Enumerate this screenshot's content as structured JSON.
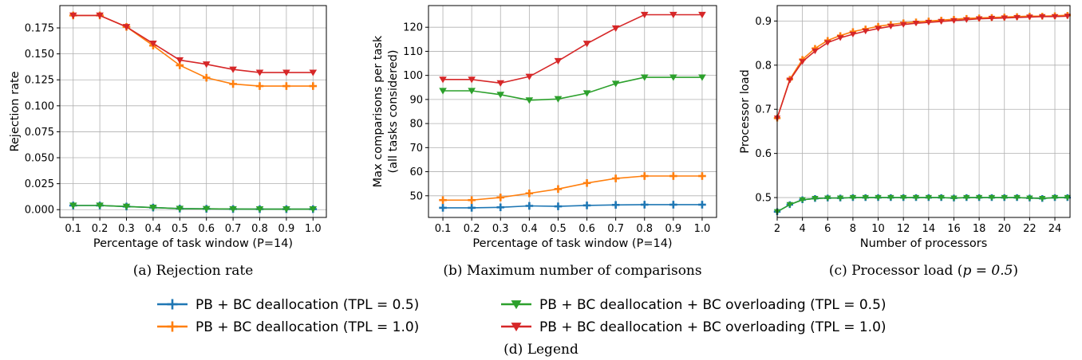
{
  "colors": {
    "pb_tpl05": "#1f77b4",
    "pb_tpl10": "#ff7f0e",
    "ovl_tpl05": "#2ca02c",
    "ovl_tpl10": "#d62728",
    "grid": "#b0b0b0"
  },
  "legend": {
    "caption": "(d) Legend",
    "entries": [
      {
        "key": "pb_tpl05",
        "label": "PB + BC deallocation (TPL = 0.5)",
        "marker": "plus"
      },
      {
        "key": "pb_tpl10",
        "label": "PB + BC deallocation (TPL = 1.0)",
        "marker": "plus"
      },
      {
        "key": "ovl_tpl05",
        "label": "PB + BC deallocation + BC overloading (TPL = 0.5)",
        "marker": "triangle-down"
      },
      {
        "key": "ovl_tpl10",
        "label": "PB + BC deallocation + BC overloading (TPL = 1.0)",
        "marker": "triangle-down"
      }
    ]
  },
  "chart_data": [
    {
      "type": "line",
      "caption": "(a) Rejection rate",
      "xlabel": "Percentage of task window (P=14)",
      "ylabel": "Rejection rate",
      "grid": true,
      "x": [
        0.1,
        0.2,
        0.3,
        0.4,
        0.5,
        0.6,
        0.7,
        0.8,
        0.9,
        1.0
      ],
      "xticks": [
        "0.1",
        "0.2",
        "0.3",
        "0.4",
        "0.5",
        "0.6",
        "0.7",
        "0.8",
        "0.9",
        "1.0"
      ],
      "xlim": [
        0.05,
        1.05
      ],
      "ylim": [
        -0.0075,
        0.1965
      ],
      "yticks": [
        "0.000",
        "0.025",
        "0.050",
        "0.075",
        "0.100",
        "0.125",
        "0.150",
        "0.175"
      ],
      "series": [
        {
          "key": "pb_tpl05",
          "values": [
            0.004,
            0.004,
            0.003,
            0.002,
            0.001,
            0.0008,
            0.0006,
            0.0005,
            0.0005,
            0.0005
          ]
        },
        {
          "key": "pb_tpl10",
          "values": [
            0.187,
            0.187,
            0.176,
            0.158,
            0.139,
            0.127,
            0.121,
            0.119,
            0.119,
            0.119
          ]
        },
        {
          "key": "ovl_tpl05",
          "values": [
            0.004,
            0.004,
            0.003,
            0.002,
            0.001,
            0.0008,
            0.0006,
            0.0005,
            0.0005,
            0.0005
          ]
        },
        {
          "key": "ovl_tpl10",
          "values": [
            0.187,
            0.187,
            0.176,
            0.16,
            0.144,
            0.14,
            0.135,
            0.132,
            0.132,
            0.132
          ]
        }
      ]
    },
    {
      "type": "line",
      "caption": "(b) Maximum number of comparisons",
      "xlabel": "Percentage of task window (P=14)",
      "ylabel": [
        "Max comparisons per task",
        "(all tasks considered)"
      ],
      "grid": true,
      "x": [
        0.1,
        0.2,
        0.3,
        0.4,
        0.5,
        0.6,
        0.7,
        0.8,
        0.9,
        1.0
      ],
      "xticks": [
        "0.1",
        "0.2",
        "0.3",
        "0.4",
        "0.5",
        "0.6",
        "0.7",
        "0.8",
        "0.9",
        "1.0"
      ],
      "xlim": [
        0.05,
        1.05
      ],
      "ylim": [
        41.0,
        129.0
      ],
      "yticks": [
        "50",
        "60",
        "70",
        "80",
        "90",
        "100",
        "110",
        "120"
      ],
      "series": [
        {
          "key": "pb_tpl05",
          "values": [
            45.0,
            45.0,
            45.2,
            45.8,
            45.6,
            46.0,
            46.2,
            46.3,
            46.3,
            46.3
          ]
        },
        {
          "key": "pb_tpl10",
          "values": [
            48.2,
            48.2,
            49.3,
            51.0,
            52.8,
            55.3,
            57.2,
            58.2,
            58.2,
            58.2
          ]
        },
        {
          "key": "ovl_tpl05",
          "values": [
            93.6,
            93.6,
            92.0,
            89.7,
            90.2,
            92.6,
            96.6,
            99.2,
            99.2,
            99.2
          ]
        },
        {
          "key": "ovl_tpl10",
          "values": [
            98.3,
            98.3,
            96.8,
            99.5,
            106.0,
            113.2,
            119.6,
            125.2,
            125.2,
            125.2
          ]
        }
      ]
    },
    {
      "type": "line",
      "caption": "(c) Processor load (",
      "caption_math": "p = 0.5",
      "caption_tail": ")",
      "xlabel": "Number of processors",
      "ylabel": "Processor load",
      "grid": true,
      "x": [
        2,
        3,
        4,
        5,
        6,
        7,
        8,
        9,
        10,
        11,
        12,
        13,
        14,
        15,
        16,
        17,
        18,
        19,
        20,
        21,
        22,
        23,
        24,
        25
      ],
      "xticks": [
        "2",
        "4",
        "6",
        "8",
        "10",
        "12",
        "14",
        "16",
        "18",
        "20",
        "22",
        "24"
      ],
      "xlim": [
        2,
        25.2
      ],
      "ylim": [
        0.455,
        0.935
      ],
      "yticks": [
        "0.5",
        "0.6",
        "0.7",
        "0.8",
        "0.9"
      ],
      "series": [
        {
          "key": "pb_tpl05",
          "values": [
            0.468,
            0.484,
            0.495,
            0.498,
            0.499,
            0.499,
            0.5,
            0.5,
            0.5,
            0.5,
            0.5,
            0.5,
            0.5,
            0.5,
            0.499,
            0.5,
            0.5,
            0.5,
            0.5,
            0.5,
            0.499,
            0.498,
            0.5,
            0.5
          ]
        },
        {
          "key": "pb_tpl10",
          "values": [
            0.68,
            0.768,
            0.813,
            0.838,
            0.856,
            0.867,
            0.876,
            0.882,
            0.888,
            0.892,
            0.896,
            0.898,
            0.9,
            0.902,
            0.904,
            0.906,
            0.907,
            0.908,
            0.909,
            0.91,
            0.911,
            0.911,
            0.912,
            0.913
          ]
        },
        {
          "key": "ovl_tpl05",
          "values": [
            0.468,
            0.484,
            0.495,
            0.498,
            0.499,
            0.499,
            0.5,
            0.5,
            0.5,
            0.5,
            0.5,
            0.5,
            0.5,
            0.5,
            0.499,
            0.5,
            0.5,
            0.5,
            0.5,
            0.5,
            0.499,
            0.498,
            0.5,
            0.5
          ]
        },
        {
          "key": "ovl_tpl10",
          "values": [
            0.68,
            0.766,
            0.808,
            0.832,
            0.851,
            0.862,
            0.87,
            0.877,
            0.883,
            0.888,
            0.892,
            0.895,
            0.897,
            0.899,
            0.901,
            0.903,
            0.905,
            0.906,
            0.907,
            0.908,
            0.909,
            0.91,
            0.91,
            0.911
          ]
        }
      ]
    }
  ]
}
